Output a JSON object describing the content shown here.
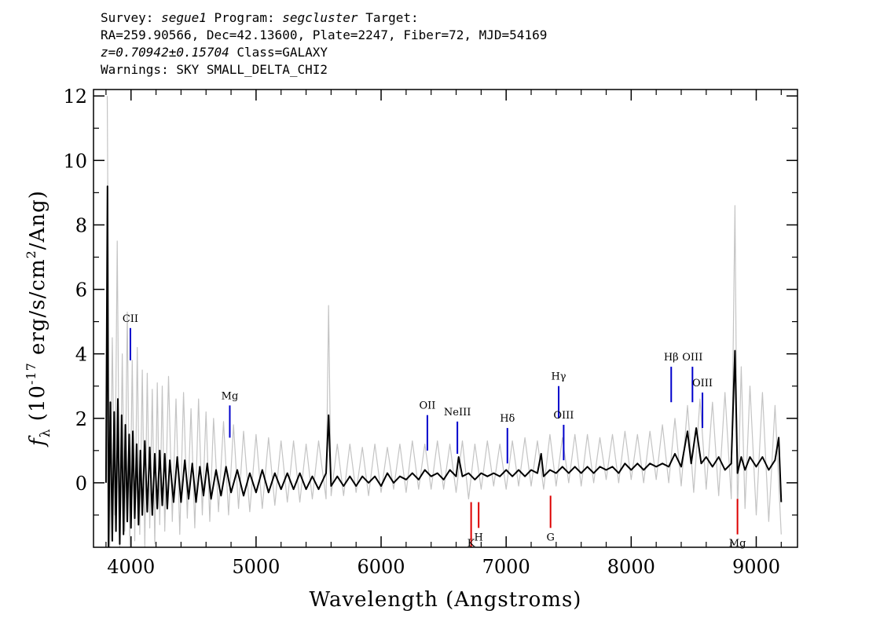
{
  "header": {
    "survey_label": "Survey:",
    "survey": "segue1",
    "program_label": "Program:",
    "program": "segcluster",
    "target_label": "Target:",
    "line2": "RA=259.90566, Dec=42.13600, Plate=2247, Fiber=72, MJD=54169",
    "redshift": "z=0.70942±0.15704",
    "class_text": "Class=GALAXY",
    "warnings": "Warnings: SKY SMALL_DELTA_CHI2"
  },
  "chart_data": {
    "type": "line",
    "xlabel": "Wavelength (Angstroms)",
    "ylabel_main": "f",
    "ylabel_sub": "λ",
    "ylabel_rest": " (10",
    "ylabel_exp": "-17",
    "ylabel_units": " erg/s/cm",
    "ylabel_exp2": "2",
    "ylabel_tail": "/Ang)",
    "xlim": [
      3700,
      9330
    ],
    "ylim": [
      -2,
      12.2
    ],
    "xticks": [
      4000,
      5000,
      6000,
      7000,
      8000,
      9000
    ],
    "yticks": [
      0,
      2,
      4,
      6,
      8,
      10,
      12
    ],
    "series": [
      {
        "role": "flux-noise",
        "color": "#c4c4c4",
        "points": [
          [
            3810,
            12
          ],
          [
            3830,
            -2
          ],
          [
            3850,
            4.5
          ],
          [
            3870,
            -1
          ],
          [
            3890,
            7.5
          ],
          [
            3910,
            -2
          ],
          [
            3930,
            4
          ],
          [
            3950,
            -1.5
          ],
          [
            3970,
            5.3
          ],
          [
            3990,
            -2
          ],
          [
            4010,
            3.8
          ],
          [
            4030,
            -1.8
          ],
          [
            4050,
            4.2
          ],
          [
            4070,
            -1.6
          ],
          [
            4090,
            3.5
          ],
          [
            4110,
            -2
          ],
          [
            4130,
            3.4
          ],
          [
            4150,
            -1.4
          ],
          [
            4170,
            2.9
          ],
          [
            4190,
            -1.9
          ],
          [
            4210,
            3.1
          ],
          [
            4230,
            -1.3
          ],
          [
            4250,
            3
          ],
          [
            4270,
            -1.5
          ],
          [
            4300,
            3.3
          ],
          [
            4330,
            -1.2
          ],
          [
            4360,
            2.6
          ],
          [
            4390,
            -1.6
          ],
          [
            4420,
            2.8
          ],
          [
            4450,
            -1.1
          ],
          [
            4480,
            2.3
          ],
          [
            4510,
            -1.4
          ],
          [
            4540,
            2.6
          ],
          [
            4570,
            -1
          ],
          [
            4600,
            2.2
          ],
          [
            4630,
            -1.2
          ],
          [
            4660,
            2
          ],
          [
            4700,
            -0.9
          ],
          [
            4740,
            1.9
          ],
          [
            4780,
            -1
          ],
          [
            4820,
            1.8
          ],
          [
            4860,
            -0.8
          ],
          [
            4900,
            1.6
          ],
          [
            4950,
            -0.9
          ],
          [
            5000,
            1.5
          ],
          [
            5050,
            -0.8
          ],
          [
            5100,
            1.4
          ],
          [
            5150,
            -0.7
          ],
          [
            5200,
            1.3
          ],
          [
            5250,
            -0.6
          ],
          [
            5300,
            1.3
          ],
          [
            5350,
            -0.6
          ],
          [
            5400,
            1.2
          ],
          [
            5450,
            -0.5
          ],
          [
            5500,
            1.3
          ],
          [
            5560,
            -0.5
          ],
          [
            5580,
            5.5
          ],
          [
            5600,
            -0.4
          ],
          [
            5650,
            1.2
          ],
          [
            5700,
            -0.4
          ],
          [
            5750,
            1.2
          ],
          [
            5800,
            -0.3
          ],
          [
            5850,
            1.1
          ],
          [
            5900,
            -0.4
          ],
          [
            5950,
            1.2
          ],
          [
            6000,
            -0.3
          ],
          [
            6050,
            1.1
          ],
          [
            6100,
            -0.2
          ],
          [
            6150,
            1.2
          ],
          [
            6200,
            -0.3
          ],
          [
            6250,
            1.3
          ],
          [
            6300,
            -0.2
          ],
          [
            6350,
            1.2
          ],
          [
            6400,
            -0.2
          ],
          [
            6450,
            1.3
          ],
          [
            6500,
            -0.2
          ],
          [
            6550,
            1.2
          ],
          [
            6600,
            -0.3
          ],
          [
            6650,
            1.3
          ],
          [
            6700,
            -0.5
          ],
          [
            6750,
            1.2
          ],
          [
            6800,
            -0.2
          ],
          [
            6850,
            1.3
          ],
          [
            6900,
            -0.1
          ],
          [
            6950,
            1.2
          ],
          [
            7000,
            -0.2
          ],
          [
            7050,
            1.3
          ],
          [
            7100,
            -0.1
          ],
          [
            7150,
            1.4
          ],
          [
            7200,
            -0.1
          ],
          [
            7250,
            1.3
          ],
          [
            7300,
            -0.2
          ],
          [
            7350,
            1.5
          ],
          [
            7400,
            -0.1
          ],
          [
            7450,
            1.4
          ],
          [
            7500,
            0
          ],
          [
            7550,
            1.5
          ],
          [
            7600,
            -0.1
          ],
          [
            7650,
            1.5
          ],
          [
            7700,
            0
          ],
          [
            7750,
            1.4
          ],
          [
            7800,
            0.1
          ],
          [
            7850,
            1.5
          ],
          [
            7900,
            0
          ],
          [
            7950,
            1.6
          ],
          [
            8000,
            0.1
          ],
          [
            8050,
            1.5
          ],
          [
            8100,
            0
          ],
          [
            8150,
            1.6
          ],
          [
            8200,
            0.1
          ],
          [
            8250,
            1.8
          ],
          [
            8300,
            0
          ],
          [
            8350,
            2
          ],
          [
            8400,
            -0.1
          ],
          [
            8450,
            2.4
          ],
          [
            8500,
            -0.3
          ],
          [
            8550,
            2.6
          ],
          [
            8600,
            -0.2
          ],
          [
            8650,
            2.5
          ],
          [
            8700,
            -0.4
          ],
          [
            8750,
            2.8
          ],
          [
            8800,
            -0.5
          ],
          [
            8830,
            8.6
          ],
          [
            8850,
            -1
          ],
          [
            8880,
            3.6
          ],
          [
            8910,
            -0.8
          ],
          [
            8950,
            3
          ],
          [
            9000,
            -1
          ],
          [
            9050,
            2.8
          ],
          [
            9100,
            -1.2
          ],
          [
            9150,
            2.4
          ],
          [
            9200,
            -1.6
          ]
        ]
      },
      {
        "role": "flux",
        "color": "#000000",
        "points": [
          [
            3800,
            0
          ],
          [
            3812,
            9.2
          ],
          [
            3820,
            -2
          ],
          [
            3835,
            2.5
          ],
          [
            3850,
            -1.8
          ],
          [
            3865,
            2.2
          ],
          [
            3880,
            -1.5
          ],
          [
            3895,
            2.6
          ],
          [
            3910,
            -1.9
          ],
          [
            3925,
            2.1
          ],
          [
            3940,
            -1.6
          ],
          [
            3955,
            1.8
          ],
          [
            3970,
            -1.2
          ],
          [
            3985,
            1.5
          ],
          [
            4000,
            -1.4
          ],
          [
            4015,
            1.6
          ],
          [
            4030,
            -1.1
          ],
          [
            4045,
            1.2
          ],
          [
            4060,
            -1.3
          ],
          [
            4075,
            1
          ],
          [
            4090,
            -1
          ],
          [
            4110,
            1.3
          ],
          [
            4130,
            -0.9
          ],
          [
            4150,
            1.1
          ],
          [
            4170,
            -1
          ],
          [
            4190,
            0.9
          ],
          [
            4210,
            -0.8
          ],
          [
            4230,
            1
          ],
          [
            4250,
            -0.7
          ],
          [
            4270,
            0.9
          ],
          [
            4290,
            -0.8
          ],
          [
            4310,
            0.7
          ],
          [
            4340,
            -0.6
          ],
          [
            4370,
            0.8
          ],
          [
            4400,
            -0.6
          ],
          [
            4430,
            0.7
          ],
          [
            4460,
            -0.5
          ],
          [
            4490,
            0.6
          ],
          [
            4520,
            -0.6
          ],
          [
            4550,
            0.5
          ],
          [
            4580,
            -0.4
          ],
          [
            4610,
            0.6
          ],
          [
            4640,
            -0.5
          ],
          [
            4680,
            0.4
          ],
          [
            4720,
            -0.4
          ],
          [
            4760,
            0.5
          ],
          [
            4800,
            -0.3
          ],
          [
            4850,
            0.4
          ],
          [
            4900,
            -0.4
          ],
          [
            4950,
            0.3
          ],
          [
            5000,
            -0.3
          ],
          [
            5050,
            0.4
          ],
          [
            5100,
            -0.3
          ],
          [
            5150,
            0.3
          ],
          [
            5200,
            -0.2
          ],
          [
            5250,
            0.3
          ],
          [
            5300,
            -0.2
          ],
          [
            5350,
            0.3
          ],
          [
            5400,
            -0.2
          ],
          [
            5450,
            0.2
          ],
          [
            5500,
            -0.2
          ],
          [
            5560,
            0.3
          ],
          [
            5580,
            2.1
          ],
          [
            5600,
            -0.1
          ],
          [
            5650,
            0.2
          ],
          [
            5700,
            -0.1
          ],
          [
            5750,
            0.2
          ],
          [
            5800,
            -0.1
          ],
          [
            5850,
            0.2
          ],
          [
            5900,
            0
          ],
          [
            5950,
            0.2
          ],
          [
            6000,
            -0.1
          ],
          [
            6050,
            0.3
          ],
          [
            6100,
            0
          ],
          [
            6150,
            0.2
          ],
          [
            6200,
            0.1
          ],
          [
            6250,
            0.3
          ],
          [
            6300,
            0.1
          ],
          [
            6350,
            0.4
          ],
          [
            6400,
            0.2
          ],
          [
            6450,
            0.3
          ],
          [
            6500,
            0.1
          ],
          [
            6550,
            0.4
          ],
          [
            6600,
            0.2
          ],
          [
            6620,
            0.8
          ],
          [
            6650,
            0.2
          ],
          [
            6700,
            0.3
          ],
          [
            6750,
            0.1
          ],
          [
            6800,
            0.3
          ],
          [
            6850,
            0.2
          ],
          [
            6900,
            0.3
          ],
          [
            6950,
            0.2
          ],
          [
            7000,
            0.4
          ],
          [
            7050,
            0.2
          ],
          [
            7100,
            0.4
          ],
          [
            7150,
            0.2
          ],
          [
            7200,
            0.4
          ],
          [
            7250,
            0.3
          ],
          [
            7280,
            0.9
          ],
          [
            7300,
            0.2
          ],
          [
            7350,
            0.4
          ],
          [
            7400,
            0.3
          ],
          [
            7450,
            0.5
          ],
          [
            7500,
            0.3
          ],
          [
            7550,
            0.5
          ],
          [
            7600,
            0.3
          ],
          [
            7650,
            0.5
          ],
          [
            7700,
            0.3
          ],
          [
            7750,
            0.5
          ],
          [
            7800,
            0.4
          ],
          [
            7850,
            0.5
          ],
          [
            7900,
            0.3
          ],
          [
            7950,
            0.6
          ],
          [
            8000,
            0.4
          ],
          [
            8050,
            0.6
          ],
          [
            8100,
            0.4
          ],
          [
            8150,
            0.6
          ],
          [
            8200,
            0.5
          ],
          [
            8250,
            0.6
          ],
          [
            8300,
            0.5
          ],
          [
            8350,
            0.9
          ],
          [
            8400,
            0.5
          ],
          [
            8450,
            1.6
          ],
          [
            8480,
            0.6
          ],
          [
            8520,
            1.7
          ],
          [
            8560,
            0.6
          ],
          [
            8600,
            0.8
          ],
          [
            8650,
            0.5
          ],
          [
            8700,
            0.8
          ],
          [
            8750,
            0.4
          ],
          [
            8800,
            0.6
          ],
          [
            8830,
            4.1
          ],
          [
            8850,
            0.3
          ],
          [
            8880,
            0.8
          ],
          [
            8910,
            0.4
          ],
          [
            8950,
            0.8
          ],
          [
            9000,
            0.5
          ],
          [
            9050,
            0.8
          ],
          [
            9100,
            0.4
          ],
          [
            9150,
            0.7
          ],
          [
            9180,
            1.4
          ],
          [
            9200,
            -0.6
          ]
        ]
      }
    ],
    "emission_lines": [
      {
        "label": "CII",
        "x": 3995,
        "y0": 3.8,
        "y1": 4.8
      },
      {
        "label": "Mg",
        "x": 4790,
        "y0": 1.4,
        "y1": 2.4
      },
      {
        "label": "OII",
        "x": 6370,
        "y0": 1.0,
        "y1": 2.1
      },
      {
        "label": "NeIII",
        "x": 6610,
        "y0": 0.9,
        "y1": 1.9
      },
      {
        "label": "Hδ",
        "x": 7010,
        "y0": 0.6,
        "y1": 1.7
      },
      {
        "label": "Hγ",
        "x": 7420,
        "y0": 2.0,
        "y1": 3.0
      },
      {
        "label": "OIII",
        "x": 7460,
        "y0": 0.7,
        "y1": 1.8
      },
      {
        "label": "Hβ",
        "x": 8320,
        "y0": 2.5,
        "y1": 3.6
      },
      {
        "label": "OIII",
        "x": 8490,
        "y0": 2.5,
        "y1": 3.6
      },
      {
        "label": "OIII",
        "x": 8570,
        "y0": 1.7,
        "y1": 2.8
      }
    ],
    "absorption_lines": [
      {
        "label": "K",
        "x": 6720,
        "y0": -2.0,
        "y1": -0.6
      },
      {
        "label": "H",
        "x": 6780,
        "y0": -1.4,
        "y1": -0.6
      },
      {
        "label": "G",
        "x": 7355,
        "y0": -1.4,
        "y1": -0.4
      },
      {
        "label": "Mg",
        "x": 8850,
        "y0": -1.6,
        "y1": -0.5
      }
    ],
    "colors": {
      "emission": "#0000cc",
      "absorption": "#dd0000",
      "noise": "#c4c4c4",
      "flux": "#000000"
    }
  }
}
